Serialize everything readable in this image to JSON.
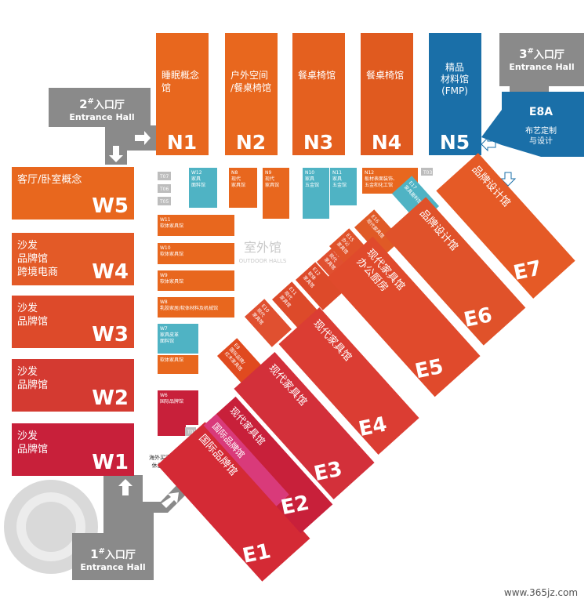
{
  "north": [
    {
      "code": "N1",
      "name": [
        "睡眠概念",
        "馆"
      ]
    },
    {
      "code": "N2",
      "name": [
        "户外空间",
        "/餐桌椅馆"
      ]
    },
    {
      "code": "N3",
      "name": [
        "餐桌椅馆"
      ]
    },
    {
      "code": "N4",
      "name": [
        "餐桌椅馆"
      ]
    },
    {
      "code": "N5",
      "name": [
        "精品",
        "材料馆",
        "(FMP)"
      ]
    }
  ],
  "e8a": {
    "code": "E8A",
    "name": [
      "布艺定制",
      "与设计"
    ]
  },
  "west": [
    {
      "code": "W5",
      "name": [
        "客厅/卧室概念"
      ]
    },
    {
      "code": "W4",
      "name": [
        "沙发",
        "品牌馆",
        "跨境电商"
      ]
    },
    {
      "code": "W3",
      "name": [
        "沙发",
        "品牌馆"
      ]
    },
    {
      "code": "W2",
      "name": [
        "沙发",
        "品牌馆"
      ]
    },
    {
      "code": "W1",
      "name": [
        "沙发",
        "品牌馆"
      ]
    }
  ],
  "east": [
    {
      "code": "E1",
      "name": [
        "国际品牌馆"
      ]
    },
    {
      "code": "E2",
      "name": [
        "现代家具馆",
        "国际品牌馆"
      ]
    },
    {
      "code": "E3",
      "name": [
        "现代家具馆"
      ]
    },
    {
      "code": "E4",
      "name": [
        "现代家具馆"
      ]
    },
    {
      "code": "E5",
      "name": [
        "现代家具馆",
        "办公厨房"
      ]
    },
    {
      "code": "E6",
      "name": [
        "品牌设计馆"
      ]
    },
    {
      "code": "E7",
      "name": [
        "品牌设计馆"
      ]
    }
  ],
  "small": [
    {
      "code": "T07",
      "name": []
    },
    {
      "code": "T06",
      "name": []
    },
    {
      "code": "T05",
      "name": []
    },
    {
      "code": "W12",
      "name": [
        "家具",
        "面料馆"
      ]
    },
    {
      "code": "N8",
      "name": [
        "现代",
        "家具馆"
      ]
    },
    {
      "code": "N9",
      "name": [
        "现代",
        "家具馆"
      ]
    },
    {
      "code": "N10",
      "name": [
        "家具",
        "五金馆"
      ]
    },
    {
      "code": "N11",
      "name": [
        "家具",
        "五金馆"
      ]
    },
    {
      "code": "N12",
      "name": [
        "板材表面装饰、",
        "五金和化工馆"
      ]
    },
    {
      "code": "T03",
      "name": []
    },
    {
      "code": "W11",
      "name": [
        "软体家具馆"
      ]
    },
    {
      "code": "W10",
      "name": [
        "软体家具馆"
      ]
    },
    {
      "code": "W9",
      "name": [
        "软体家具馆"
      ]
    },
    {
      "code": "W8",
      "name": [
        "乳胶家居/软体材料及机械馆"
      ]
    },
    {
      "code": "W7",
      "name": [
        "家具皮革",
        "面料馆"
      ]
    },
    {
      "code": "",
      "name": [
        "软体家具馆"
      ]
    },
    {
      "code": "W6",
      "name": [
        "国际品牌馆"
      ]
    },
    {
      "code": "T01",
      "name": []
    }
  ],
  "diagonal_small": [
    {
      "code": "E9",
      "name": [
        "国际品牌/",
        "红木家具馆"
      ]
    },
    {
      "code": "E10",
      "name": [
        "现代",
        "家具馆"
      ]
    },
    {
      "code": "E11",
      "name": [
        "现代",
        "家具馆"
      ]
    },
    {
      "code": "E12",
      "name": [
        "软体",
        "家具馆"
      ]
    },
    {
      "code": "E13",
      "name": [
        "现代",
        "家具馆"
      ]
    },
    {
      "code": "E15",
      "name": [
        "办公",
        "家具馆"
      ]
    },
    {
      "code": "E16",
      "name": [
        "现代家具馆"
      ]
    },
    {
      "code": "E17",
      "name": [
        "家具面料馆"
      ]
    }
  ],
  "outdoor": {
    "zh": "室外馆",
    "en": "OUTDOOR HALLS"
  },
  "lounge": [
    "海外买家",
    "休息室"
  ],
  "entrances": [
    {
      "num": "2",
      "sup": "#",
      "zh": "入口厅",
      "en": "Entrance Hall"
    },
    {
      "num": "3",
      "sup": "#",
      "zh": "入口厅",
      "en": "Entrance Hall"
    },
    {
      "num": "1",
      "sup": "#",
      "zh": "入口厅",
      "en": "Entrance Hall"
    }
  ],
  "watermark": "www.365jz.com"
}
